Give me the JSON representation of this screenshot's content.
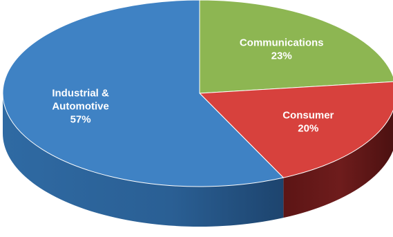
{
  "chart_data": {
    "type": "pie",
    "title": "",
    "slices": [
      {
        "label": [
          "Communications"
        ],
        "percent_label": "23%",
        "value": 23,
        "color": "#8db652"
      },
      {
        "label": [
          "Consumer"
        ],
        "percent_label": "20%",
        "value": 20,
        "color": "#d7413d"
      },
      {
        "label": [
          "Industrial &",
          "Automotive"
        ],
        "percent_label": "57%",
        "value": 57,
        "color": "#3f82c4"
      }
    ],
    "style": "3d-perspective",
    "legend": "none"
  }
}
